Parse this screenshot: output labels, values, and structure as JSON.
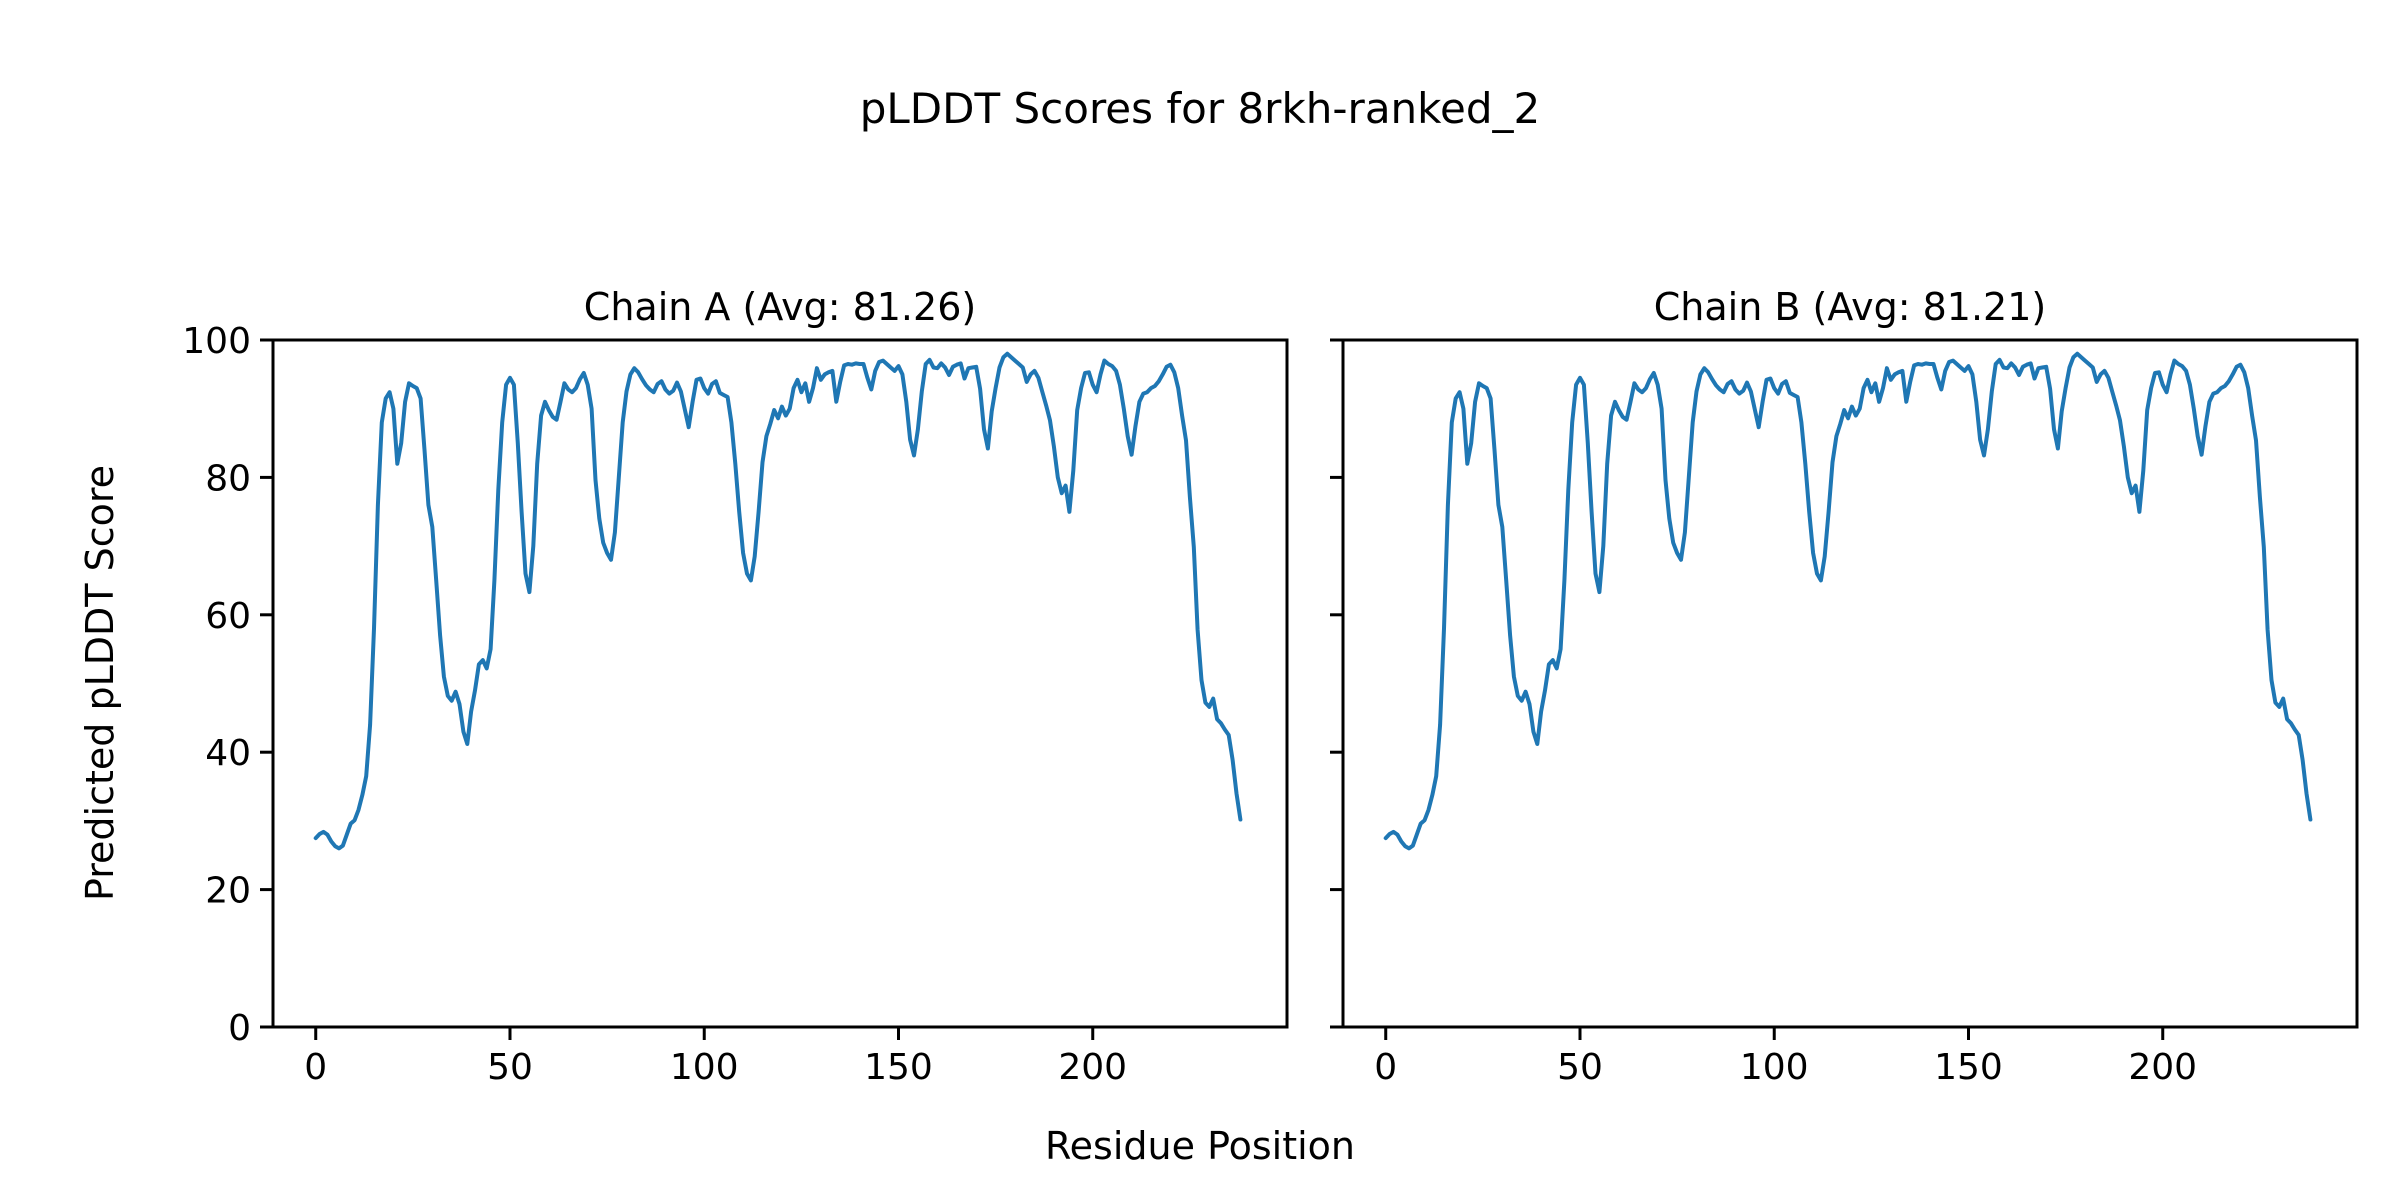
{
  "figure": {
    "suptitle": "pLDDT Scores for 8rkh-ranked_2",
    "xlabel": "Residue Position",
    "ylabel": "Predicted pLDDT Score",
    "line_color": "#1f77b4",
    "background_color": "#ffffff",
    "spine_color": "#000000"
  },
  "chart_data": [
    {
      "type": "line",
      "title": "Chain A (Avg: 81.26)",
      "chain": "A",
      "average_plddt": 81.26,
      "xlim": [
        -11,
        250
      ],
      "ylim": [
        0,
        100
      ],
      "xticks": [
        0,
        50,
        100,
        150,
        200
      ],
      "yticks": [
        0,
        20,
        40,
        60,
        80,
        100
      ],
      "grid": false,
      "show_ytick_labels": true,
      "series": [
        {
          "name": "pLDDT",
          "x_start": 0,
          "x_step": 1,
          "values": [
            27.5,
            28.1,
            28.4,
            28.0,
            27.0,
            26.3,
            26.0,
            26.4,
            28.0,
            29.6,
            30.1,
            31.6,
            33.8,
            36.5,
            44.0,
            58.0,
            76.0,
            88.0,
            91.5,
            92.4,
            90.0,
            82.0,
            85.0,
            91.0,
            93.7,
            93.3,
            93.0,
            91.5,
            84.0,
            76.0,
            72.8,
            65.0,
            57.0,
            51.0,
            48.2,
            47.5,
            48.8,
            47.0,
            43.0,
            41.2,
            45.9,
            49.0,
            52.8,
            53.4,
            52.2,
            55.0,
            65.0,
            78.2,
            88.0,
            93.5,
            94.5,
            93.5,
            85.0,
            75.0,
            66.0,
            63.3,
            70.0,
            82.0,
            89.0,
            91.0,
            89.8,
            88.8,
            88.4,
            91.0,
            93.7,
            92.8,
            92.4,
            93.0,
            94.3,
            95.2,
            93.5,
            90.0,
            79.6,
            74.0,
            70.5,
            69.0,
            68.0,
            72.0,
            80.0,
            88.0,
            92.5,
            95.0,
            95.9,
            95.3,
            94.3,
            93.4,
            92.8,
            92.4,
            93.6,
            94.0,
            92.8,
            92.2,
            92.6,
            93.8,
            92.5,
            89.9,
            87.3,
            91.0,
            94.2,
            94.4,
            93.0,
            92.2,
            93.6,
            94.0,
            92.3,
            92.0,
            91.7,
            88.0,
            82.0,
            75.0,
            69.0,
            66.0,
            65.0,
            68.5,
            75.0,
            82.2,
            86.0,
            87.8,
            89.8,
            88.6,
            90.3,
            89.0,
            90.0,
            93.0,
            94.2,
            92.4,
            93.7,
            91.0,
            93.0,
            95.9,
            94.2,
            95.0,
            95.3,
            95.5,
            91.0,
            93.9,
            96.3,
            96.5,
            96.4,
            96.6,
            96.5,
            96.5,
            94.5,
            92.8,
            95.5,
            96.8,
            97.0,
            96.5,
            96.0,
            95.5,
            96.2,
            95.0,
            91.0,
            85.5,
            83.2,
            87.0,
            92.5,
            96.5,
            97.1,
            96.0,
            95.9,
            96.6,
            96.0,
            94.9,
            96.1,
            96.4,
            96.6,
            94.4,
            95.9,
            96.0,
            96.1,
            92.9,
            87.0,
            84.2,
            89.6,
            93.0,
            96.0,
            97.5,
            98.0,
            97.5,
            97.0,
            96.5,
            96.0,
            93.9,
            95.0,
            95.5,
            94.5,
            92.5,
            90.5,
            88.3,
            84.5,
            80.0,
            77.7,
            78.8,
            75.0,
            81.0,
            89.8,
            93.0,
            95.2,
            95.3,
            93.5,
            92.4,
            95.0,
            97.0,
            96.5,
            96.2,
            95.5,
            93.5,
            90.0,
            86.0,
            83.3,
            87.5,
            91.0,
            92.2,
            92.4,
            93.0,
            93.3,
            94.0,
            95.0,
            96.1,
            96.4,
            95.3,
            93.0,
            89.0,
            85.4,
            77.1,
            69.9,
            57.8,
            50.5,
            47.2,
            46.6,
            47.8,
            44.8,
            44.2,
            43.3,
            42.5,
            38.9,
            34.0,
            30.2
          ]
        }
      ]
    },
    {
      "type": "line",
      "title": "Chain B (Avg: 81.21)",
      "chain": "B",
      "average_plddt": 81.21,
      "xlim": [
        -11,
        250
      ],
      "ylim": [
        0,
        100
      ],
      "xticks": [
        0,
        50,
        100,
        150,
        200
      ],
      "yticks": [
        0,
        20,
        40,
        60,
        80,
        100
      ],
      "grid": false,
      "show_ytick_labels": false,
      "series": [
        {
          "name": "pLDDT",
          "x_start": 0,
          "x_step": 1,
          "values": [
            27.5,
            28.1,
            28.4,
            28.0,
            27.0,
            26.3,
            26.0,
            26.4,
            28.0,
            29.6,
            30.1,
            31.6,
            33.8,
            36.5,
            44.0,
            58.0,
            76.0,
            88.0,
            91.5,
            92.4,
            90.0,
            82.0,
            85.0,
            91.0,
            93.7,
            93.3,
            93.0,
            91.5,
            84.0,
            76.0,
            72.8,
            65.0,
            57.0,
            51.0,
            48.2,
            47.5,
            48.8,
            47.0,
            43.0,
            41.2,
            45.9,
            49.0,
            52.8,
            53.4,
            52.2,
            55.0,
            65.0,
            78.2,
            88.0,
            93.5,
            94.5,
            93.5,
            85.0,
            75.0,
            66.0,
            63.3,
            70.0,
            82.0,
            89.0,
            91.0,
            89.8,
            88.8,
            88.4,
            91.0,
            93.7,
            92.8,
            92.4,
            93.0,
            94.3,
            95.2,
            93.5,
            90.0,
            79.6,
            74.0,
            70.5,
            69.0,
            68.0,
            72.0,
            80.0,
            88.0,
            92.5,
            95.0,
            95.9,
            95.3,
            94.3,
            93.4,
            92.8,
            92.4,
            93.6,
            94.0,
            92.8,
            92.2,
            92.6,
            93.8,
            92.5,
            89.9,
            87.3,
            91.0,
            94.2,
            94.4,
            93.0,
            92.2,
            93.6,
            94.0,
            92.3,
            92.0,
            91.7,
            88.0,
            82.0,
            75.0,
            69.0,
            66.0,
            65.0,
            68.5,
            75.0,
            82.2,
            86.0,
            87.8,
            89.8,
            88.6,
            90.3,
            89.0,
            90.0,
            93.0,
            94.2,
            92.4,
            93.7,
            91.0,
            93.0,
            95.9,
            94.2,
            95.0,
            95.3,
            95.5,
            91.0,
            93.9,
            96.3,
            96.5,
            96.4,
            96.6,
            96.5,
            96.5,
            94.5,
            92.8,
            95.5,
            96.8,
            97.0,
            96.5,
            96.0,
            95.5,
            96.2,
            95.0,
            91.0,
            85.5,
            83.2,
            87.0,
            92.5,
            96.5,
            97.1,
            96.0,
            95.9,
            96.6,
            96.0,
            94.9,
            96.1,
            96.4,
            96.6,
            94.4,
            95.9,
            96.0,
            96.1,
            92.9,
            87.0,
            84.2,
            89.6,
            93.0,
            96.0,
            97.5,
            98.0,
            97.5,
            97.0,
            96.5,
            96.0,
            93.9,
            95.0,
            95.5,
            94.5,
            92.5,
            90.5,
            88.3,
            84.5,
            80.0,
            77.7,
            78.8,
            75.0,
            81.0,
            89.8,
            93.0,
            95.2,
            95.3,
            93.5,
            92.4,
            95.0,
            97.0,
            96.5,
            96.2,
            95.5,
            93.5,
            90.0,
            86.0,
            83.3,
            87.5,
            91.0,
            92.2,
            92.4,
            93.0,
            93.3,
            94.0,
            95.0,
            96.1,
            96.4,
            95.3,
            93.0,
            89.0,
            85.4,
            77.1,
            69.9,
            57.8,
            50.5,
            47.2,
            46.6,
            47.8,
            44.8,
            44.2,
            43.3,
            42.5,
            38.9,
            34.0,
            30.2
          ]
        }
      ]
    }
  ]
}
